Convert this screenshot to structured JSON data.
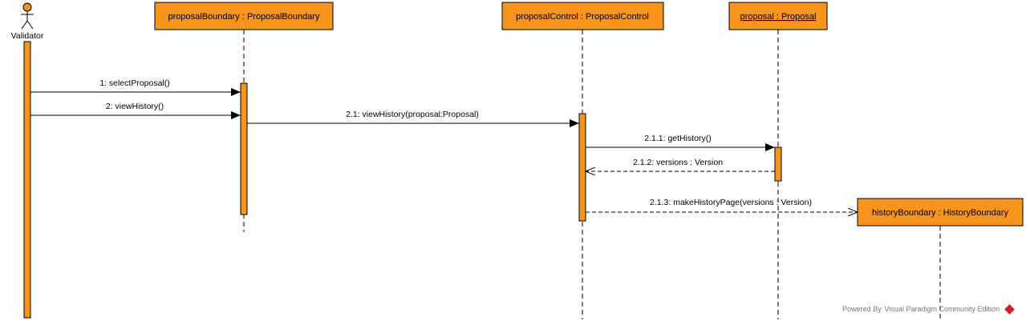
{
  "colors": {
    "fill": "#f7941e",
    "stroke": "#000000",
    "background": "#ffffff"
  },
  "actor": {
    "name": "Validator",
    "icon": "stick-figure-icon"
  },
  "lifelines": [
    {
      "id": "proposalBoundary",
      "label": "proposalBoundary : ProposalBoundary",
      "underline": false
    },
    {
      "id": "proposalControl",
      "label": "proposalControl : ProposalControl",
      "underline": false
    },
    {
      "id": "proposal",
      "label": "proposal : Proposal",
      "underline": true
    },
    {
      "id": "historyBoundary",
      "label": "historyBoundary : HistoryBoundary",
      "underline": false
    }
  ],
  "messages": [
    {
      "id": "m1",
      "label": "1: selectProposal()",
      "kind": "sync"
    },
    {
      "id": "m2",
      "label": "2: viewHistory()",
      "kind": "sync"
    },
    {
      "id": "m21",
      "label": "2.1: viewHistory(proposal:Proposal)",
      "kind": "sync"
    },
    {
      "id": "m211",
      "label": "2.1.1: getHistory()",
      "kind": "sync"
    },
    {
      "id": "m212",
      "label": "2.1.2: versions : Version",
      "kind": "return"
    },
    {
      "id": "m213",
      "label": "2.1.3: makeHistoryPage(versions : Version)",
      "kind": "create"
    }
  ],
  "footer": {
    "prefix": "Powered By",
    "brand": "Visual Paradigm Community Edition",
    "logo": "visual-paradigm-logo-icon"
  }
}
